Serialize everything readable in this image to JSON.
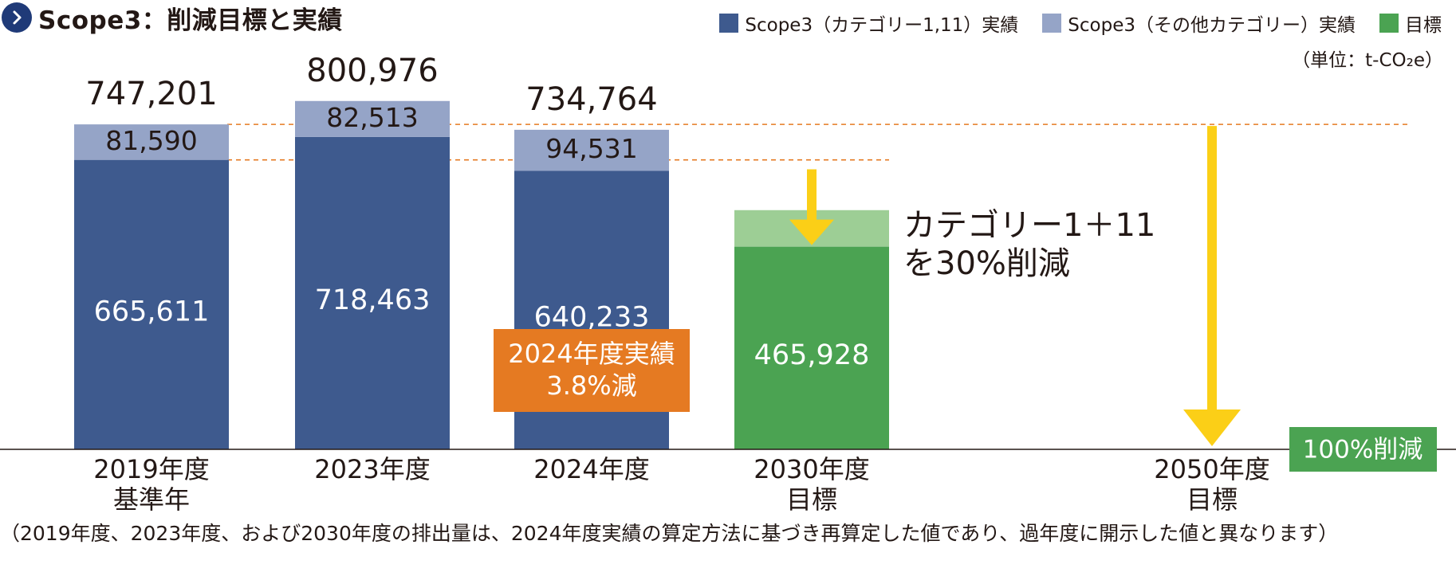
{
  "title": "Scope3：削減目標と実績",
  "unit": "（単位：t-CO₂e）",
  "legend": [
    {
      "label": "Scope3（カテゴリー1,11）実績",
      "color": "#3e5a8e"
    },
    {
      "label": "Scope3（その他カテゴリー）実績",
      "color": "#95a4c7"
    },
    {
      "label": "目標",
      "color": "#4ba352"
    }
  ],
  "colors": {
    "main": "#3e5a8e",
    "other": "#95a4c7",
    "target": "#4ba352",
    "target_light": "#9dce95",
    "arrow": "#fbcf17",
    "badge": "#e57a22",
    "dash": "#e57a22"
  },
  "chart_data": {
    "type": "bar",
    "categories": [
      "2019年度\n基準年",
      "2023年度",
      "2024年度",
      "2030年度\n目標",
      "2050年度\n目標"
    ],
    "series": [
      {
        "name": "Scope3（カテゴリー1,11）実績",
        "values": [
          665611,
          718463,
          640233,
          null,
          null
        ],
        "labels": [
          "665,611",
          "718,463",
          "640,233",
          "",
          ""
        ]
      },
      {
        "name": "Scope3（その他カテゴリー）実績",
        "values": [
          81590,
          82513,
          94531,
          null,
          null
        ],
        "labels": [
          "81,590",
          "82,513",
          "94,531",
          "",
          ""
        ]
      },
      {
        "name": "目標",
        "values": [
          null,
          null,
          null,
          465928,
          0
        ],
        "labels": [
          "",
          "",
          "",
          "465,928",
          ""
        ]
      }
    ],
    "totals": [
      "747,201",
      "800,976",
      "734,764",
      "",
      ""
    ],
    "target_2030_light_top": 550000,
    "ylim": [
      0,
      850000
    ],
    "annotations": {
      "reduction_2030": "カテゴリー1＋11\nを30%削減",
      "badge_2024": "2024年度実績\n3.8%減",
      "reduction_2050": "100%削減"
    }
  },
  "footnote": "（2019年度、2023年度、および2030年度の排出量は、2024年度実績の算定方法に基づき再算定した値であり、過年度に開示した値と異なります）"
}
